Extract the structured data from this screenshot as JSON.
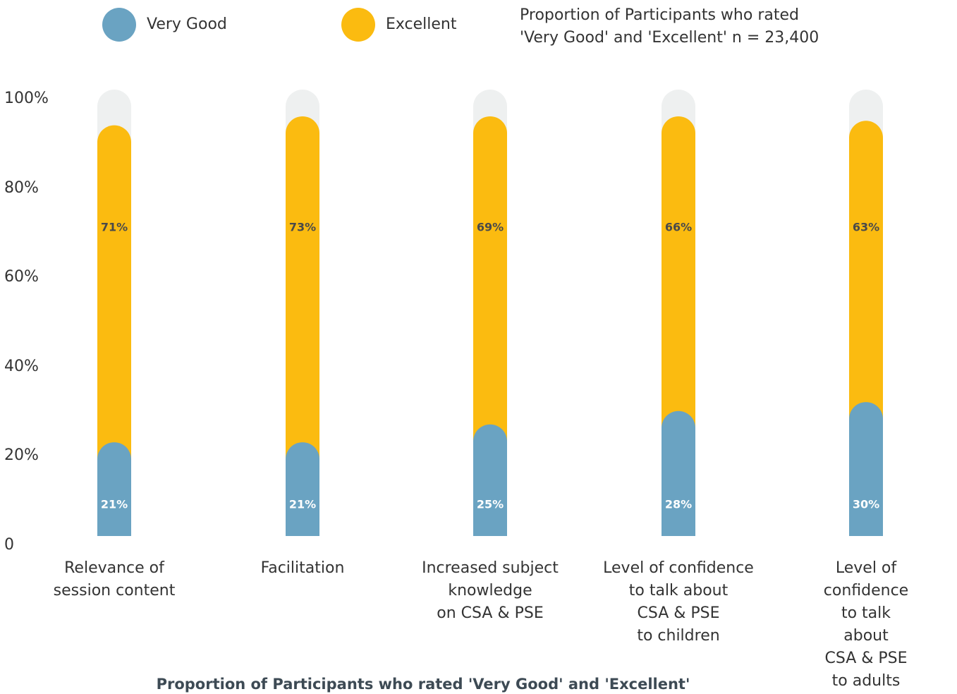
{
  "chart_data": {
    "type": "bar",
    "stacked": true,
    "title": "Proportion of Participants who rated 'Very Good' and 'Excellent'",
    "subtitle": "Proportion of Participants who rated\n'Very Good' and 'Excellent' n = 23,400",
    "categories": [
      "Relevance of\nsession content",
      "Facilitation",
      "Increased subject\nknowledge\non CSA & PSE",
      "Level of confidence\nto talk about\nCSA & PSE\nto children",
      "Level of confidence\nto talk about\nCSA & PSE\nto adults"
    ],
    "series": [
      {
        "name": "Very Good",
        "color": "#6aa3c2",
        "values": [
          21,
          21,
          25,
          28,
          30
        ],
        "value_labels": [
          "21%",
          "21%",
          "25%",
          "28%",
          "30%"
        ]
      },
      {
        "name": "Excellent",
        "color": "#fbbb10",
        "values": [
          71,
          73,
          69,
          66,
          63
        ],
        "value_labels": [
          "71%",
          "73%",
          "69%",
          "66%",
          "63%"
        ]
      }
    ],
    "ylim": [
      0,
      100
    ],
    "yticks": [
      0,
      {
        "value": 20,
        "label": "20%"
      },
      {
        "value": 40,
        "label": "40%"
      },
      {
        "value": 60,
        "label": "60%"
      },
      {
        "value": 80,
        "label": "80%"
      },
      {
        "value": 100,
        "label": "100%"
      }
    ],
    "track_color": "#eef0f0"
  }
}
